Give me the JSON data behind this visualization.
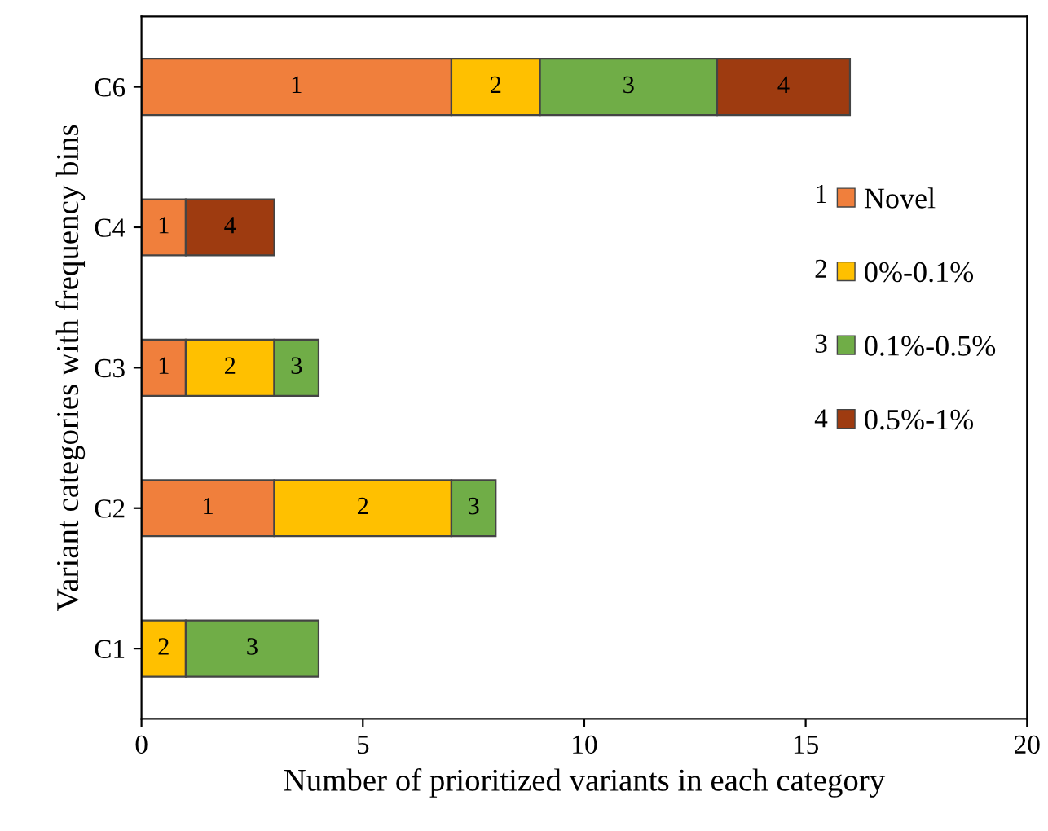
{
  "chart_data": {
    "type": "bar",
    "orientation": "horizontal",
    "stacked": true,
    "xlabel": "Number of prioritized variants in each category",
    "ylabel": "Variant categories with frequency bins",
    "categories": [
      "C6",
      "C4",
      "C3",
      "C2",
      "C1"
    ],
    "series": [
      {
        "name": "Novel",
        "color": "#f07f3c",
        "values": [
          7,
          1,
          1,
          3,
          null
        ]
      },
      {
        "name": "0%-0.1%",
        "color": "#ffc000",
        "values": [
          2,
          null,
          2,
          4,
          1
        ]
      },
      {
        "name": "0.1%-0.5%",
        "color": "#70ad47",
        "values": [
          4,
          null,
          1,
          1,
          3
        ]
      },
      {
        "name": "0.5%-1%",
        "color": "#9e3b10",
        "values": [
          3,
          2,
          null,
          null,
          null
        ]
      }
    ],
    "annotations": [
      "1",
      "2",
      "3",
      "4",
      "1",
      "4",
      "1",
      "2",
      "3",
      "1",
      "2",
      "3",
      "2",
      "3",
      "1",
      "2",
      "3",
      "4"
    ],
    "xlim": [
      0,
      20
    ],
    "xticks": [
      0,
      5,
      10,
      15,
      20
    ],
    "grid": false,
    "legend": "right"
  }
}
